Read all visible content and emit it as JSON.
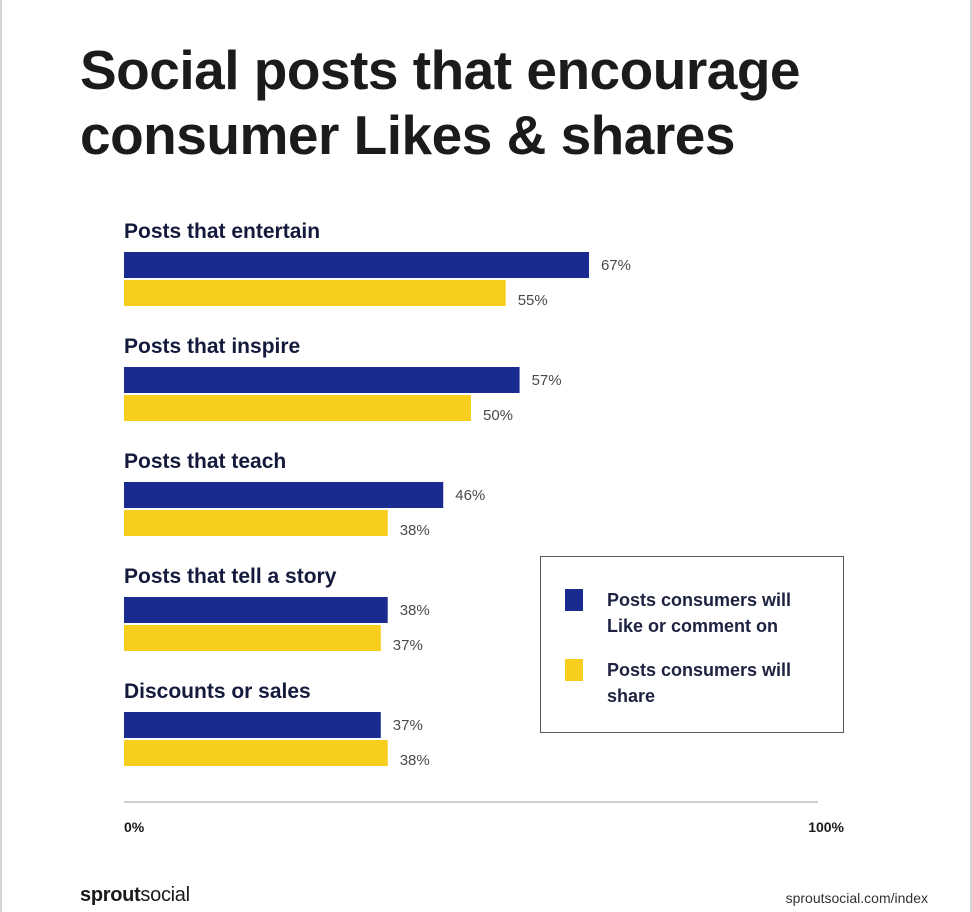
{
  "title_lines": [
    "Social posts that encourage",
    "consumer Likes & shares"
  ],
  "colors": {
    "like": "#1a2b8f",
    "share": "#f7cd1e",
    "axis": "#cfcfcf"
  },
  "legend": {
    "like": "Posts consumers will Like or comment on",
    "share": "Posts consumers will share"
  },
  "brand": {
    "bold": "sprout",
    "light": "social"
  },
  "source": "sproutsocial.com/index",
  "chart_data": {
    "type": "bar",
    "orientation": "horizontal",
    "categories": [
      "Posts that entertain",
      "Posts that inspire",
      "Posts that teach",
      "Posts that tell a story",
      "Discounts or sales"
    ],
    "series": [
      {
        "name": "Posts consumers will Like or comment on",
        "values": [
          67,
          57,
          46,
          38,
          37
        ]
      },
      {
        "name": "Posts consumers will share",
        "values": [
          55,
          50,
          38,
          37,
          38
        ]
      }
    ],
    "value_labels": [
      [
        "67%",
        "57%",
        "46%",
        "38%",
        "37%"
      ],
      [
        "55%",
        "50%",
        "38%",
        "37%",
        "38%"
      ]
    ],
    "xlim": [
      0,
      100
    ],
    "ticks": [
      "0%",
      "100%"
    ],
    "legend_position": "right",
    "grid": false
  }
}
